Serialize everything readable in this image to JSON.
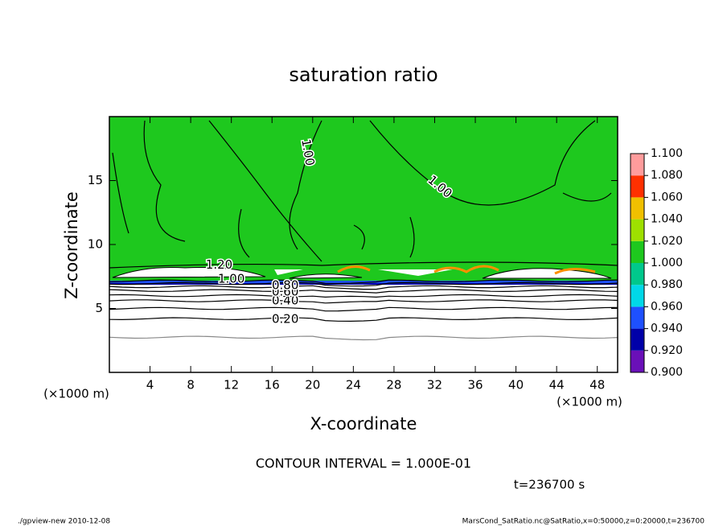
{
  "chart_data": {
    "type": "contour",
    "title": "saturation ratio",
    "xlabel": "X-coordinate",
    "ylabel": "Z-coordinate",
    "x_unit": "(×1000 m)",
    "x_unit_right": "(×1000 m)",
    "xlim": [
      0,
      50
    ],
    "ylim": [
      0,
      20
    ],
    "xticks": [
      4,
      8,
      12,
      16,
      20,
      24,
      28,
      32,
      36,
      40,
      44,
      48
    ],
    "yticks": [
      5,
      10,
      15
    ],
    "contours": [
      {
        "level": 0.1,
        "z": 2.75
      },
      {
        "level": 0.2,
        "z": 4.2
      },
      {
        "level": 0.3,
        "z": 5.0
      },
      {
        "level": 0.4,
        "z": 5.6
      },
      {
        "level": 0.5,
        "z": 6.0
      },
      {
        "level": 0.6,
        "z": 6.4
      },
      {
        "level": 0.7,
        "z": 6.7
      },
      {
        "level": 0.8,
        "z": 6.95
      },
      {
        "level": 0.9,
        "z": 7.15
      }
    ],
    "contour_labels": [
      {
        "label": "0.20",
        "x": 17.3,
        "z": 4.15
      },
      {
        "label": "0.40",
        "x": 17.3,
        "z": 5.6
      },
      {
        "label": "0.60",
        "x": 17.3,
        "z": 6.3
      },
      {
        "label": "0.80",
        "x": 17.3,
        "z": 6.8
      },
      {
        "label": "1.00",
        "x": 12,
        "z": 7.3
      },
      {
        "label": "1.20",
        "x": 10.8,
        "z": 8.4
      },
      {
        "label": "1.00",
        "x": 19.5,
        "z": 17.2
      },
      {
        "label": "1.00",
        "x": 32.5,
        "z": 14.5
      }
    ],
    "colorbar": {
      "ticks": [
        {
          "value": 0.9,
          "label": "0.900"
        },
        {
          "value": 0.92,
          "label": "0.920"
        },
        {
          "value": 0.94,
          "label": "0.940"
        },
        {
          "value": 0.96,
          "label": "0.960"
        },
        {
          "value": 0.98,
          "label": "0.980"
        },
        {
          "value": 1.0,
          "label": "1.000"
        },
        {
          "value": 1.02,
          "label": "1.020"
        },
        {
          "value": 1.04,
          "label": "1.040"
        },
        {
          "value": 1.06,
          "label": "1.060"
        },
        {
          "value": 1.08,
          "label": "1.080"
        },
        {
          "value": 1.1,
          "label": "1.100"
        }
      ],
      "colors": [
        "#6a10b8",
        "#0000a8",
        "#1e50ff",
        "#00d8e8",
        "#00c88c",
        "#1ec81e",
        "#9ee000",
        "#f0c000",
        "#ff3000",
        "#ff9c9c"
      ]
    },
    "contour_interval": "CONTOUR INTERVAL = 1.000E-01",
    "time_label": "t=236700 s",
    "footer_left": "./gpview-new  2010-12-08",
    "footer_right": "MarsCond_SatRatio.nc@SatRatio,x=0:50000,z=0:20000,t=236700"
  }
}
